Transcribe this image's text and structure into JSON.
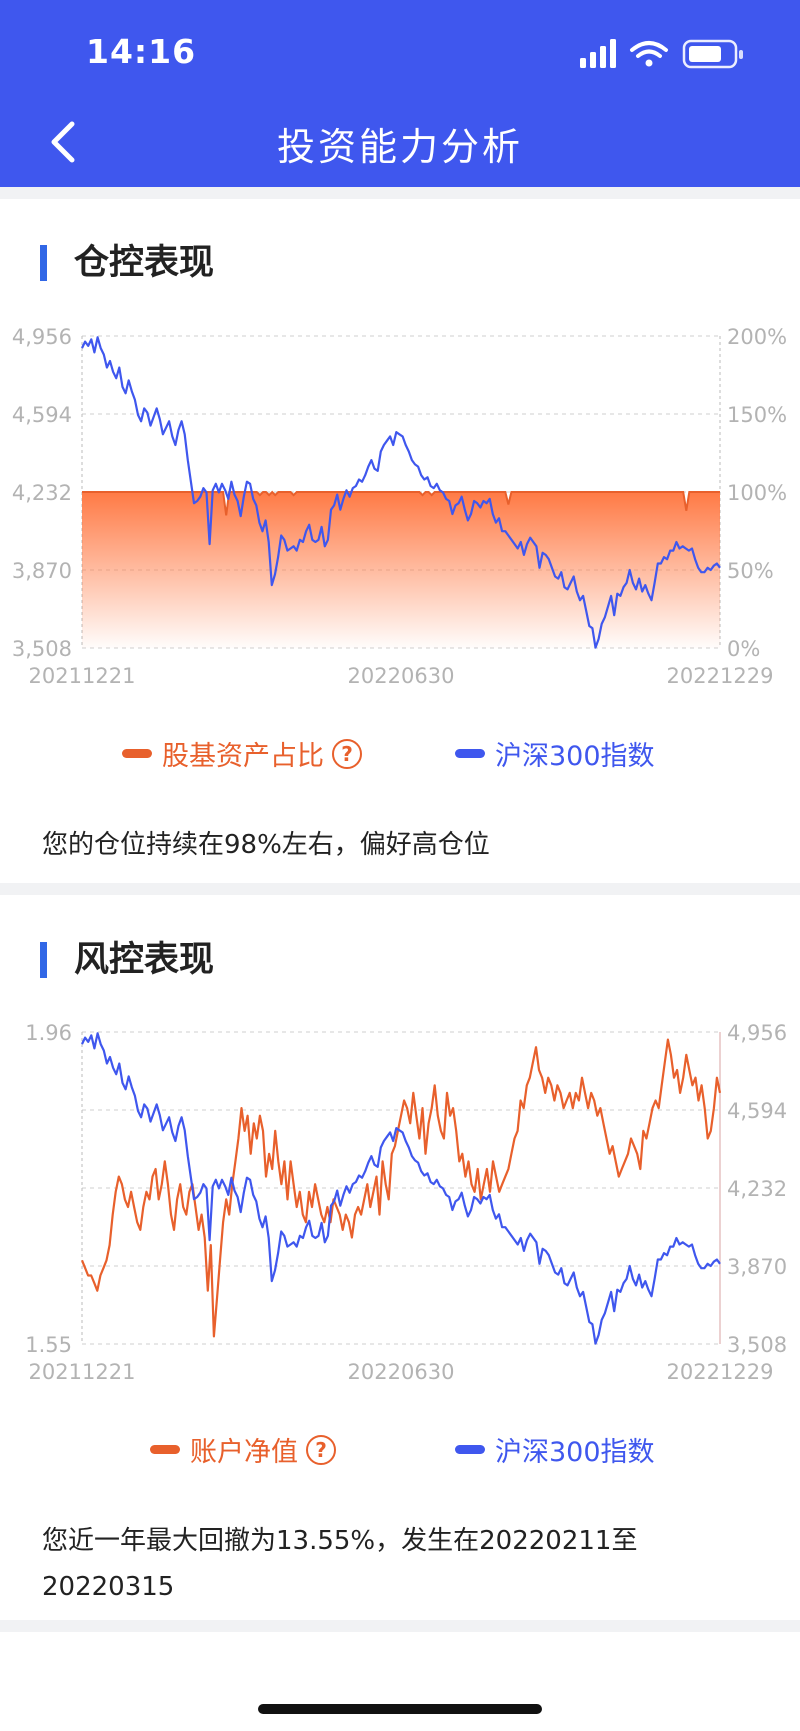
{
  "status_bar": {
    "time": "14:16"
  },
  "nav": {
    "title": "投资能力分析"
  },
  "position_section": {
    "title": "仓控表现",
    "description": "您的仓位持续在98%左右，偏好高仓位",
    "legend": [
      {
        "label": "股基资产占比",
        "color": "#e8602c",
        "has_help": true
      },
      {
        "label": "沪深300指数",
        "color": "#3f57ee",
        "has_help": false
      }
    ],
    "help_symbol": "?"
  },
  "risk_section": {
    "title": "风控表现",
    "description": "您近一年最大回撤为13.55%，发生在20220211至20220315",
    "legend": [
      {
        "label": "账户净值",
        "color": "#e8602c",
        "has_help": true
      },
      {
        "label": "沪深300指数",
        "color": "#3f57ee",
        "has_help": false
      }
    ],
    "help_symbol": "?"
  },
  "chart_data": [
    {
      "type": "line",
      "x_ticks": [
        "20211221",
        "20220630",
        "20221229"
      ],
      "left_axis": {
        "ticks": [
          "4,956",
          "4,594",
          "4,232",
          "3,870",
          "3,508"
        ],
        "range": [
          3508,
          4956
        ]
      },
      "right_axis": {
        "ticks": [
          "200%",
          "150%",
          "100%",
          "50%",
          "0%"
        ],
        "range": [
          0,
          200
        ]
      },
      "grid": true,
      "series": [
        {
          "name": "股基资产占比",
          "axis": "right",
          "style": "area",
          "color": "#ff7a45",
          "values": [
            100,
            100,
            100,
            100,
            100,
            100,
            100,
            100,
            100,
            100,
            100,
            100,
            100,
            100,
            100,
            100,
            100,
            100,
            100,
            100,
            100,
            100,
            100,
            100,
            100,
            100,
            100,
            100,
            100,
            100,
            100,
            100,
            100,
            100,
            100,
            100,
            100,
            100,
            100,
            100,
            100,
            100,
            100,
            100,
            100,
            100,
            100,
            85,
            100,
            100,
            100,
            100,
            100,
            100,
            100,
            100,
            100,
            100,
            98,
            100,
            100,
            98,
            100,
            98,
            100,
            100,
            100,
            100,
            100,
            98,
            100,
            100,
            100,
            100,
            100,
            100,
            100,
            100,
            100,
            100,
            100,
            100,
            100,
            100,
            100,
            100,
            100,
            100,
            100,
            100,
            100,
            100,
            100,
            100,
            100,
            100,
            100,
            100,
            100,
            100,
            100,
            100,
            100,
            100,
            100,
            100,
            100,
            100,
            100,
            100,
            100,
            98,
            100,
            100,
            98,
            100,
            100,
            100,
            100,
            100,
            100,
            100,
            100,
            100,
            100,
            100,
            100,
            100,
            100,
            100,
            100,
            100,
            100,
            100,
            100,
            100,
            100,
            100,
            100,
            92,
            100,
            100,
            100,
            100,
            100,
            100,
            100,
            100,
            100,
            100,
            100,
            100,
            100,
            100,
            100,
            100,
            100,
            100,
            100,
            100,
            100,
            100,
            100,
            100,
            100,
            100,
            100,
            100,
            100,
            100,
            100,
            100,
            100,
            100,
            100,
            100,
            100,
            100,
            100,
            100,
            100,
            100,
            100,
            100,
            100,
            100,
            100,
            100,
            100,
            100,
            100,
            100,
            100,
            100,
            100,
            100,
            100,
            88,
            100,
            100,
            100,
            100,
            100,
            100,
            100,
            100,
            100,
            100,
            100
          ]
        },
        {
          "name": "沪深300指数",
          "axis": "left",
          "style": "line",
          "color": "#3f57ee",
          "values": [
            4900,
            4930,
            4910,
            4940,
            4880,
            4950,
            4900,
            4870,
            4810,
            4840,
            4790,
            4760,
            4810,
            4720,
            4690,
            4750,
            4700,
            4660,
            4590,
            4560,
            4620,
            4600,
            4540,
            4580,
            4620,
            4570,
            4500,
            4530,
            4560,
            4490,
            4450,
            4520,
            4560,
            4500,
            4380,
            4280,
            4180,
            4190,
            4210,
            4250,
            4230,
            3990,
            4240,
            4270,
            4230,
            4270,
            4240,
            4200,
            4280,
            4220,
            4190,
            4120,
            4210,
            4280,
            4270,
            4200,
            4170,
            4090,
            4050,
            4100,
            4000,
            3800,
            3850,
            3930,
            4030,
            4010,
            3960,
            3970,
            3980,
            3960,
            4010,
            4000,
            4050,
            4080,
            4010,
            4000,
            4010,
            4070,
            3980,
            4010,
            4150,
            4170,
            4220,
            4150,
            4200,
            4240,
            4210,
            4250,
            4260,
            4290,
            4280,
            4310,
            4350,
            4380,
            4340,
            4330,
            4420,
            4450,
            4470,
            4490,
            4450,
            4510,
            4500,
            4490,
            4450,
            4420,
            4380,
            4360,
            4350,
            4310,
            4290,
            4300,
            4260,
            4250,
            4270,
            4240,
            4230,
            4200,
            4190,
            4130,
            4170,
            4180,
            4210,
            4150,
            4100,
            4130,
            4190,
            4180,
            4160,
            4190,
            4180,
            4200,
            4130,
            4090,
            4110,
            4050,
            4050,
            4030,
            4010,
            3990,
            3970,
            4000,
            3940,
            3990,
            4020,
            4000,
            3980,
            3880,
            3950,
            3940,
            3920,
            3880,
            3840,
            3830,
            3860,
            3790,
            3780,
            3810,
            3840,
            3770,
            3730,
            3750,
            3680,
            3610,
            3600,
            3510,
            3550,
            3620,
            3650,
            3700,
            3750,
            3660,
            3760,
            3750,
            3790,
            3810,
            3870,
            3810,
            3780,
            3830,
            3770,
            3800,
            3760,
            3730,
            3810,
            3900,
            3900,
            3930,
            3920,
            3960,
            3960,
            4000,
            3970,
            3980,
            3970,
            3960,
            3970,
            3920,
            3880,
            3860,
            3860,
            3880,
            3870,
            3890,
            3900,
            3880
          ]
        }
      ]
    },
    {
      "type": "line",
      "x_ticks": [
        "20211221",
        "20220630",
        "20221229"
      ],
      "left_axis": {
        "ticks": [
          "1.96",
          "",
          "",
          "",
          "1.55"
        ],
        "range": [
          1.55,
          1.96
        ]
      },
      "right_axis": {
        "ticks": [
          "4,956",
          "4,594",
          "4,232",
          "3,870",
          "3,508"
        ],
        "range": [
          3508,
          4956
        ]
      },
      "grid": true,
      "series": [
        {
          "name": "账户净值",
          "axis": "left",
          "style": "line",
          "color": "#e8602c",
          "values": [
            1.66,
            1.65,
            1.64,
            1.64,
            1.63,
            1.62,
            1.64,
            1.65,
            1.66,
            1.68,
            1.72,
            1.75,
            1.77,
            1.76,
            1.74,
            1.73,
            1.75,
            1.73,
            1.71,
            1.7,
            1.73,
            1.75,
            1.74,
            1.77,
            1.78,
            1.74,
            1.76,
            1.79,
            1.76,
            1.72,
            1.7,
            1.74,
            1.76,
            1.73,
            1.72,
            1.75,
            1.76,
            1.73,
            1.7,
            1.72,
            1.69,
            1.62,
            1.68,
            1.56,
            1.61,
            1.66,
            1.71,
            1.74,
            1.72,
            1.76,
            1.79,
            1.82,
            1.86,
            1.83,
            1.85,
            1.8,
            1.84,
            1.82,
            1.85,
            1.83,
            1.77,
            1.8,
            1.78,
            1.83,
            1.79,
            1.76,
            1.79,
            1.74,
            1.79,
            1.76,
            1.73,
            1.75,
            1.72,
            1.71,
            1.75,
            1.73,
            1.76,
            1.74,
            1.72,
            1.71,
            1.73,
            1.71,
            1.74,
            1.73,
            1.72,
            1.7,
            1.72,
            1.71,
            1.69,
            1.72,
            1.73,
            1.72,
            1.74,
            1.76,
            1.73,
            1.75,
            1.77,
            1.72,
            1.79,
            1.76,
            1.74,
            1.8,
            1.81,
            1.83,
            1.85,
            1.87,
            1.86,
            1.84,
            1.88,
            1.85,
            1.82,
            1.86,
            1.8,
            1.84,
            1.86,
            1.89,
            1.85,
            1.83,
            1.82,
            1.88,
            1.85,
            1.86,
            1.83,
            1.79,
            1.8,
            1.77,
            1.79,
            1.76,
            1.75,
            1.78,
            1.74,
            1.76,
            1.78,
            1.75,
            1.79,
            1.77,
            1.75,
            1.76,
            1.77,
            1.78,
            1.8,
            1.82,
            1.83,
            1.87,
            1.86,
            1.89,
            1.9,
            1.92,
            1.94,
            1.91,
            1.9,
            1.88,
            1.9,
            1.89,
            1.87,
            1.89,
            1.88,
            1.86,
            1.87,
            1.88,
            1.86,
            1.88,
            1.87,
            1.9,
            1.88,
            1.86,
            1.88,
            1.87,
            1.85,
            1.86,
            1.84,
            1.82,
            1.8,
            1.81,
            1.79,
            1.77,
            1.78,
            1.79,
            1.8,
            1.82,
            1.81,
            1.8,
            1.78,
            1.83,
            1.82,
            1.84,
            1.86,
            1.87,
            1.86,
            1.89,
            1.92,
            1.95,
            1.93,
            1.9,
            1.91,
            1.88,
            1.9,
            1.93,
            1.91,
            1.89,
            1.9,
            1.87,
            1.89,
            1.86,
            1.82,
            1.83,
            1.86,
            1.9,
            1.88
          ]
        },
        {
          "name": "沪深300指数",
          "axis": "right",
          "style": "line",
          "color": "#3f57ee",
          "values": [
            4900,
            4930,
            4910,
            4940,
            4880,
            4950,
            4900,
            4870,
            4810,
            4840,
            4790,
            4760,
            4810,
            4720,
            4690,
            4750,
            4700,
            4660,
            4590,
            4560,
            4620,
            4600,
            4540,
            4580,
            4620,
            4570,
            4500,
            4530,
            4560,
            4490,
            4450,
            4520,
            4560,
            4500,
            4380,
            4280,
            4180,
            4190,
            4210,
            4250,
            4230,
            3990,
            4240,
            4270,
            4230,
            4270,
            4240,
            4200,
            4280,
            4220,
            4190,
            4120,
            4210,
            4280,
            4270,
            4200,
            4170,
            4090,
            4050,
            4100,
            4000,
            3800,
            3850,
            3930,
            4030,
            4010,
            3960,
            3970,
            3980,
            3960,
            4010,
            4000,
            4050,
            4080,
            4010,
            4000,
            4010,
            4070,
            3980,
            4010,
            4150,
            4170,
            4220,
            4150,
            4200,
            4240,
            4210,
            4250,
            4260,
            4290,
            4280,
            4310,
            4350,
            4380,
            4340,
            4330,
            4420,
            4450,
            4470,
            4490,
            4450,
            4510,
            4500,
            4490,
            4450,
            4420,
            4380,
            4360,
            4350,
            4310,
            4290,
            4300,
            4260,
            4250,
            4270,
            4240,
            4230,
            4200,
            4190,
            4130,
            4170,
            4180,
            4210,
            4150,
            4100,
            4130,
            4190,
            4180,
            4160,
            4190,
            4180,
            4200,
            4130,
            4090,
            4110,
            4050,
            4050,
            4030,
            4010,
            3990,
            3970,
            4000,
            3940,
            3990,
            4020,
            4000,
            3980,
            3880,
            3950,
            3940,
            3920,
            3880,
            3840,
            3830,
            3860,
            3790,
            3780,
            3810,
            3840,
            3770,
            3730,
            3750,
            3680,
            3610,
            3600,
            3510,
            3550,
            3620,
            3650,
            3700,
            3750,
            3660,
            3760,
            3750,
            3790,
            3810,
            3870,
            3810,
            3780,
            3830,
            3770,
            3800,
            3760,
            3730,
            3810,
            3900,
            3900,
            3930,
            3920,
            3960,
            3960,
            4000,
            3970,
            3980,
            3970,
            3960,
            3970,
            3920,
            3880,
            3860,
            3860,
            3880,
            3870,
            3890,
            3900,
            3880
          ]
        }
      ]
    }
  ]
}
